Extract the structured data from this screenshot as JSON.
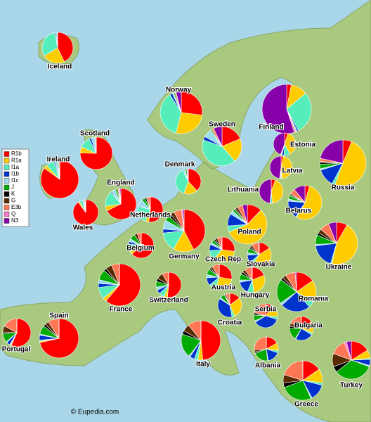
{
  "legend": {
    "items": [
      {
        "name": "R1b",
        "color": "#ff0000"
      },
      {
        "name": "R1a",
        "color": "#ffcc00"
      },
      {
        "name": "I1a",
        "color": "#55eebb"
      },
      {
        "name": "I1b",
        "color": "#0033cc"
      },
      {
        "name": "I1c",
        "color": "#99ddee"
      },
      {
        "name": "J",
        "color": "#00aa00"
      },
      {
        "name": "K",
        "color": "#000000"
      },
      {
        "name": "G",
        "color": "#5a2a00"
      },
      {
        "name": "E3b",
        "color": "#ff7755"
      },
      {
        "name": "Q",
        "color": "#ff77cc"
      },
      {
        "name": "N3",
        "color": "#8800aa"
      }
    ]
  },
  "regions": [
    {
      "name": "Iceland",
      "values": [
        42,
        23,
        30,
        1,
        2,
        0,
        0,
        0,
        0,
        0,
        0
      ]
    },
    {
      "name": "Norway",
      "values": [
        27,
        27,
        37,
        2,
        1,
        1,
        0,
        0,
        1,
        0,
        4
      ]
    },
    {
      "name": "Sweden",
      "values": [
        19,
        20,
        42,
        3,
        7,
        1,
        0,
        0,
        2,
        0,
        7
      ]
    },
    {
      "name": "Finland",
      "values": [
        3,
        11,
        28,
        1,
        1,
        0,
        0,
        0,
        1,
        0,
        55
      ]
    },
    {
      "name": "Scotland",
      "values": [
        73,
        6,
        11,
        2,
        4,
        0,
        0,
        0,
        1,
        0,
        0
      ]
    },
    {
      "name": "Ireland",
      "values": [
        85,
        3,
        7,
        1,
        2,
        1,
        0,
        0,
        1,
        0,
        0
      ]
    },
    {
      "name": "England",
      "values": [
        67,
        5,
        16,
        1,
        4,
        2,
        0,
        1,
        1,
        1,
        1
      ]
    },
    {
      "name": "Wales",
      "values": [
        89,
        2,
        4,
        1,
        1,
        1,
        0,
        0,
        1,
        0,
        0
      ]
    },
    {
      "name": "Denmark",
      "values": [
        37,
        17,
        36,
        1,
        2,
        2,
        0,
        0,
        1,
        0,
        1
      ]
    },
    {
      "name": "Estonia",
      "values": [
        5,
        37,
        9,
        3,
        1,
        0,
        0,
        0,
        1,
        0,
        44
      ]
    },
    {
      "name": "Latvia",
      "values": [
        3,
        41,
        1,
        1,
        0,
        0,
        0,
        0,
        1,
        0,
        43
      ]
    },
    {
      "name": "Lithuania",
      "values": [
        5,
        38,
        2,
        1,
        0,
        0,
        0,
        0,
        0,
        0,
        43
      ]
    },
    {
      "name": "Russia",
      "values": [
        6,
        48,
        2,
        12,
        1,
        3,
        1,
        1,
        2,
        0,
        21
      ]
    },
    {
      "name": "Belarus",
      "values": [
        4,
        50,
        1,
        16,
        2,
        3,
        1,
        1,
        5,
        0,
        10
      ]
    },
    {
      "name": "Netherlands",
      "values": [
        50,
        4,
        22,
        1,
        8,
        4,
        2,
        1,
        4,
        0,
        0
      ]
    },
    {
      "name": "Poland",
      "values": [
        12,
        56,
        5,
        10,
        3,
        2,
        1,
        2,
        4,
        0,
        4
      ]
    },
    {
      "name": "Belgium",
      "values": [
        63,
        4,
        10,
        3,
        4,
        7,
        0,
        4,
        5,
        0,
        0
      ]
    },
    {
      "name": "Germany",
      "values": [
        43,
        16,
        15,
        3,
        7,
        4,
        2,
        3,
        6,
        1,
        1
      ]
    },
    {
      "name": "Czech Rep.",
      "values": [
        27,
        34,
        12,
        8,
        3,
        4,
        2,
        3,
        5,
        0,
        1
      ]
    },
    {
      "name": "Slovakia",
      "values": [
        15,
        41,
        4,
        10,
        3,
        6,
        2,
        3,
        9,
        0,
        1
      ]
    },
    {
      "name": "Ukraine",
      "values": [
        8,
        44,
        1,
        18,
        1,
        7,
        2,
        3,
        7,
        0,
        6
      ]
    },
    {
      "name": "France",
      "values": [
        61,
        3,
        9,
        3,
        3,
        8,
        2,
        5,
        6,
        0,
        0
      ]
    },
    {
      "name": "Switzerland",
      "values": [
        50,
        4,
        7,
        5,
        4,
        7,
        4,
        8,
        8,
        0,
        0
      ]
    },
    {
      "name": "Austria",
      "values": [
        27,
        26,
        9,
        10,
        4,
        7,
        2,
        3,
        9,
        0,
        0
      ]
    },
    {
      "name": "Hungary",
      "values": [
        19,
        29,
        8,
        16,
        3,
        8,
        3,
        4,
        9,
        0,
        1
      ]
    },
    {
      "name": "Romania",
      "values": [
        15,
        18,
        5,
        24,
        2,
        20,
        2,
        3,
        8,
        0,
        1
      ]
    },
    {
      "name": "Croatia",
      "values": [
        15,
        29,
        4,
        38,
        2,
        6,
        1,
        2,
        5,
        0,
        0
      ]
    },
    {
      "name": "Serbia",
      "values": [
        10,
        16,
        4,
        36,
        2,
        8,
        2,
        2,
        20,
        0,
        0
      ]
    },
    {
      "name": "Bulgaria",
      "values": [
        17,
        17,
        3,
        26,
        1,
        18,
        3,
        5,
        19,
        0,
        0
      ]
    },
    {
      "name": "Spain",
      "values": [
        70,
        1,
        1,
        4,
        1,
        7,
        2,
        3,
        9,
        0,
        0
      ]
    },
    {
      "name": "Portugal",
      "values": [
        56,
        1,
        1,
        4,
        1,
        10,
        2,
        7,
        17,
        0,
        0
      ]
    },
    {
      "name": "Italy",
      "values": [
        49,
        4,
        3,
        4,
        1,
        20,
        3,
        6,
        11,
        0,
        0
      ]
    },
    {
      "name": "Albania",
      "values": [
        17,
        10,
        3,
        17,
        1,
        20,
        2,
        3,
        26,
        0,
        0
      ]
    },
    {
      "name": "Greece",
      "values": [
        16,
        12,
        2,
        14,
        1,
        27,
        4,
        7,
        21,
        0,
        0
      ]
    },
    {
      "name": "Turkey",
      "values": [
        16,
        7,
        1,
        5,
        1,
        33,
        5,
        11,
        13,
        2,
        4
      ]
    }
  ],
  "credit": "© Eupedia.com"
}
